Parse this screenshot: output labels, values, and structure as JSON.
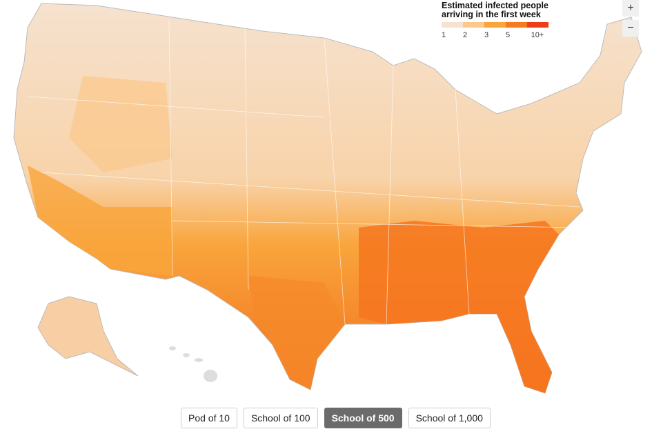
{
  "legend": {
    "title": "Estimated infected people arriving in the first week",
    "labels": [
      "1",
      "2",
      "3",
      "5",
      "10+"
    ],
    "colors": [
      "#f6e2cf",
      "#fcc98c",
      "#f9a53c",
      "#f67a1f",
      "#ee3e18"
    ]
  },
  "zoom": {
    "in": "+",
    "out": "−"
  },
  "buttons": {
    "labels": [
      "Pod of 10",
      "School of 100",
      "School of 500",
      "School of 1,000"
    ],
    "selected": 2
  }
}
